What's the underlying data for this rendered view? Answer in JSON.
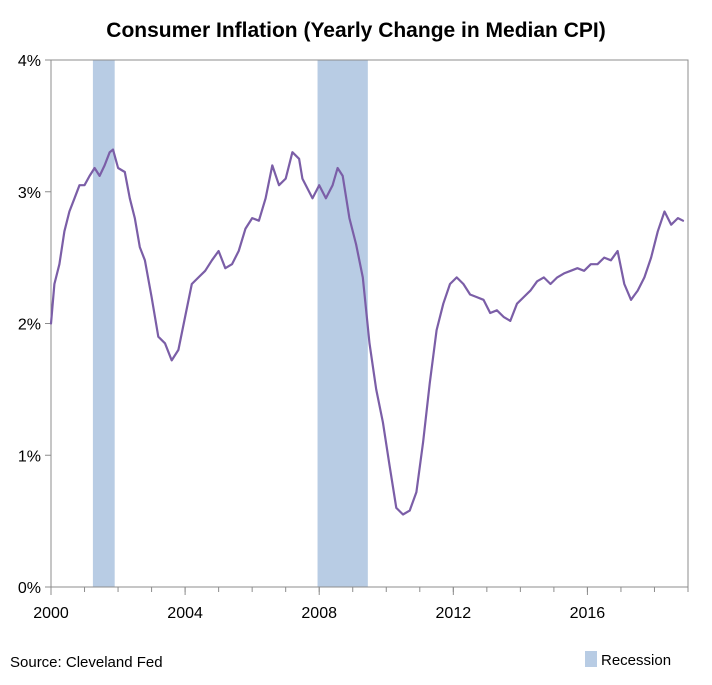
{
  "chart_data": {
    "type": "line",
    "title": "Consumer Inflation (Yearly Change in Median CPI)",
    "xlabel": "",
    "ylabel": "",
    "xlim": [
      2000,
      2019
    ],
    "ylim": [
      0,
      4
    ],
    "x_ticks": [
      {
        "value": 2000,
        "label": "2000"
      },
      {
        "value": 2004,
        "label": "2004"
      },
      {
        "value": 2008,
        "label": "2008"
      },
      {
        "value": 2012,
        "label": "2012"
      },
      {
        "value": 2016,
        "label": "2016"
      }
    ],
    "y_ticks": [
      {
        "value": 0,
        "label": "0%"
      },
      {
        "value": 1,
        "label": "1%"
      },
      {
        "value": 2,
        "label": "2%"
      },
      {
        "value": 3,
        "label": "3%"
      },
      {
        "value": 4,
        "label": "4%"
      }
    ],
    "grid": false,
    "legend_position": "bottom-right",
    "legend": [
      {
        "name": "Recession",
        "color": "#b8cce4",
        "kind": "area"
      }
    ],
    "recessions": [
      {
        "start": 2001.25,
        "end": 2001.9
      },
      {
        "start": 2007.95,
        "end": 2009.45
      }
    ],
    "series": [
      {
        "color": "#7b5ea7",
        "x": [
          2000.0,
          2000.1,
          2000.25,
          2000.4,
          2000.55,
          2000.7,
          2000.85,
          2001.0,
          2001.15,
          2001.3,
          2001.45,
          2001.6,
          2001.75,
          2001.85,
          2002.0,
          2002.2,
          2002.35,
          2002.5,
          2002.65,
          2002.8,
          2003.0,
          2003.2,
          2003.4,
          2003.6,
          2003.8,
          2004.0,
          2004.2,
          2004.4,
          2004.6,
          2004.8,
          2005.0,
          2005.2,
          2005.4,
          2005.6,
          2005.8,
          2006.0,
          2006.2,
          2006.4,
          2006.6,
          2006.8,
          2007.0,
          2007.2,
          2007.4,
          2007.5,
          2007.6,
          2007.8,
          2008.0,
          2008.2,
          2008.4,
          2008.55,
          2008.7,
          2008.9,
          2009.1,
          2009.3,
          2009.5,
          2009.7,
          2009.9,
          2010.1,
          2010.3,
          2010.5,
          2010.7,
          2010.9,
          2011.1,
          2011.3,
          2011.5,
          2011.7,
          2011.9,
          2012.1,
          2012.3,
          2012.5,
          2012.7,
          2012.9,
          2013.1,
          2013.3,
          2013.5,
          2013.7,
          2013.9,
          2014.1,
          2014.3,
          2014.5,
          2014.7,
          2014.9,
          2015.1,
          2015.3,
          2015.5,
          2015.7,
          2015.9,
          2016.1,
          2016.3,
          2016.5,
          2016.7,
          2016.9,
          2017.1,
          2017.3,
          2017.5,
          2017.7,
          2017.9,
          2018.1,
          2018.3,
          2018.5,
          2018.7,
          2018.85
        ],
        "values": [
          2.0,
          2.3,
          2.45,
          2.7,
          2.85,
          2.95,
          3.05,
          3.05,
          3.12,
          3.18,
          3.12,
          3.2,
          3.3,
          3.32,
          3.18,
          3.15,
          2.95,
          2.8,
          2.58,
          2.48,
          2.2,
          1.9,
          1.85,
          1.72,
          1.8,
          2.05,
          2.3,
          2.35,
          2.4,
          2.48,
          2.55,
          2.42,
          2.45,
          2.55,
          2.72,
          2.8,
          2.78,
          2.95,
          3.2,
          3.05,
          3.1,
          3.3,
          3.25,
          3.1,
          3.05,
          2.95,
          3.05,
          2.95,
          3.05,
          3.18,
          3.12,
          2.8,
          2.6,
          2.35,
          1.85,
          1.5,
          1.25,
          0.92,
          0.6,
          0.55,
          0.58,
          0.72,
          1.1,
          1.55,
          1.95,
          2.15,
          2.3,
          2.35,
          2.3,
          2.22,
          2.2,
          2.18,
          2.08,
          2.1,
          2.05,
          2.02,
          2.15,
          2.2,
          2.25,
          2.32,
          2.35,
          2.3,
          2.35,
          2.38,
          2.4,
          2.42,
          2.4,
          2.45,
          2.45,
          2.5,
          2.48,
          2.55,
          2.3,
          2.18,
          2.25,
          2.35,
          2.5,
          2.7,
          2.85,
          2.75,
          2.8,
          2.78
        ]
      }
    ]
  },
  "footer": {
    "source": "Source: Cleveland Fed",
    "legend_label": "Recession"
  }
}
